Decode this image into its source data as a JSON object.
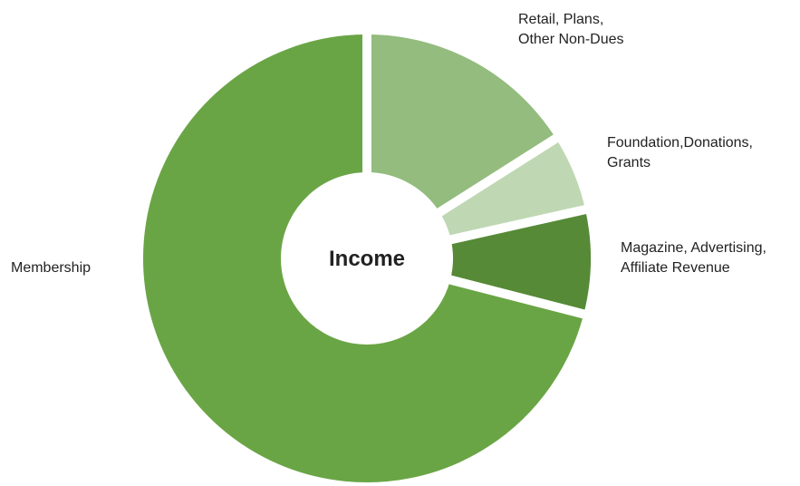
{
  "chart_data": {
    "type": "pie",
    "variant": "donut",
    "center_label": "Income",
    "legend": "none",
    "slices": [
      {
        "label": "Retail, Plans, Other Non-Dues",
        "label_lines": [
          "Retail, Plans,",
          "Other Non-Dues"
        ],
        "value": 16.0,
        "color": "#93bc7e"
      },
      {
        "label": "Foundation,Donations, Grants",
        "label_lines": [
          "Foundation,Donations,",
          "Grants"
        ],
        "value": 5.5,
        "color": "#bfd8b3"
      },
      {
        "label": "Magazine, Advertising, Affiliate Revenue",
        "label_lines": [
          "Magazine, Advertising,",
          "Affiliate Revenue"
        ],
        "value": 7.5,
        "color": "#568a37"
      },
      {
        "label": "Membership",
        "label_lines": [
          "Membership"
        ],
        "value": 71.0,
        "color": "#6aa545"
      }
    ]
  }
}
